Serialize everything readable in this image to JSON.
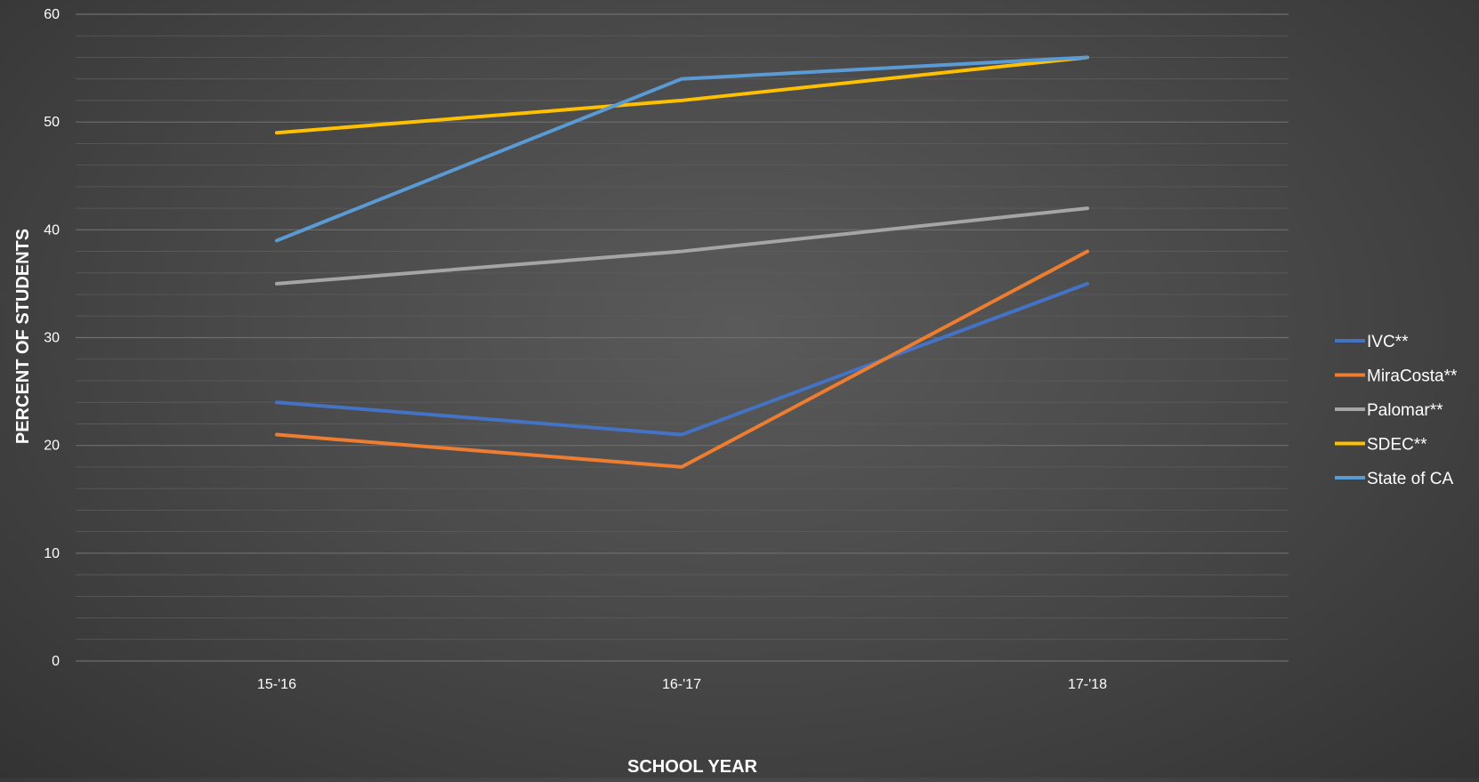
{
  "chart_data": {
    "type": "line",
    "xlabel": "SCHOOL YEAR",
    "ylabel": "PERCENT OF STUDENTS",
    "ylim": [
      0,
      60
    ],
    "yticks": [
      "0",
      "10",
      "20",
      "30",
      "40",
      "50",
      "60"
    ],
    "categories": [
      "15-'16",
      "16-'17",
      "17-'18"
    ],
    "grid": true,
    "legend_position": "right",
    "series": [
      {
        "name": "IVC**",
        "values": [
          24,
          21,
          35
        ],
        "color": "#4472c4"
      },
      {
        "name": "MiraCosta**",
        "values": [
          21,
          18,
          38
        ],
        "color": "#ed7d31"
      },
      {
        "name": "Palomar**",
        "values": [
          35,
          38,
          42
        ],
        "color": "#a5a5a5"
      },
      {
        "name": "SDEC**",
        "values": [
          49,
          52,
          56
        ],
        "color": "#ffc000"
      },
      {
        "name": "State of CA",
        "values": [
          39,
          54,
          56
        ],
        "color": "#5b9bd5"
      }
    ]
  }
}
